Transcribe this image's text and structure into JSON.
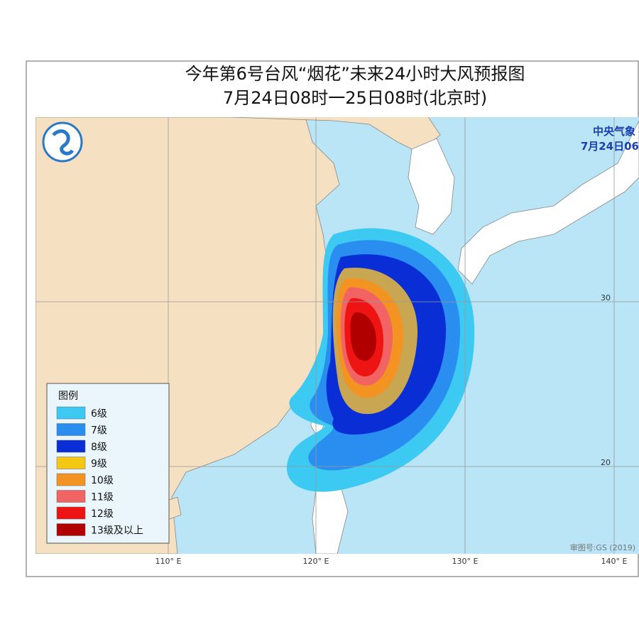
{
  "header": {
    "title": "今年第6号台风“烟花”未来24小时大风预报图",
    "subtitle": "7月24日08时一25日08时(北京时)"
  },
  "agency": {
    "name": "中央气象",
    "issued": "7月24日06"
  },
  "legend": {
    "title": "图例",
    "items": [
      {
        "label": "6级",
        "color": "#3cc9f2"
      },
      {
        "label": "7级",
        "color": "#2a8ef0"
      },
      {
        "label": "8级",
        "color": "#0a2ed6"
      },
      {
        "label": "9级",
        "color": "#f3c712"
      },
      {
        "label": "10级",
        "color": "#f39422"
      },
      {
        "label": "11级",
        "color": "#f26464"
      },
      {
        "label": "12级",
        "color": "#ee1414"
      },
      {
        "label": "13级及以上",
        "color": "#b00000"
      }
    ]
  },
  "grid": {
    "longitudes": [
      "110° E",
      "120° E",
      "130° E",
      "140° E"
    ],
    "latitudes": [
      "30",
      "20"
    ]
  },
  "footer": {
    "approval": "审图号:GS (2019)"
  }
}
